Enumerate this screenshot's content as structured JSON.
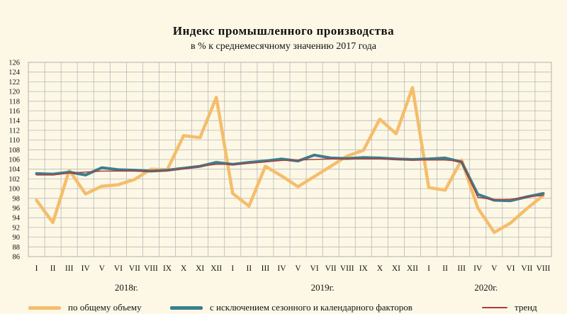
{
  "chart_data": {
    "type": "line",
    "title": "Индекс промышленного  производства",
    "subtitle": "в % к среднемесячному значению 2017  года",
    "y_ticks": [
      86,
      88,
      90,
      92,
      94,
      96,
      98,
      100,
      102,
      104,
      106,
      108,
      110,
      112,
      114,
      116,
      118,
      120,
      122,
      124,
      126
    ],
    "ylim": [
      86,
      126
    ],
    "grid": true,
    "month_labels": [
      "I",
      "II",
      "III",
      "IV",
      "V",
      "VI",
      "VII",
      "VIII",
      "IX",
      "X",
      "XI",
      "XII",
      "I",
      "II",
      "III",
      "IV",
      "V",
      "VI",
      "VII",
      "VIII",
      "IX",
      "X",
      "XI",
      "XII",
      "I",
      "II",
      "III",
      "IV",
      "V",
      "VI",
      "VII",
      "VIII"
    ],
    "year_labels": [
      {
        "label": "2018г.",
        "center_index": 5.5
      },
      {
        "label": "2019г.",
        "center_index": 17.5
      },
      {
        "label": "2020г.",
        "center_index": 27.5
      }
    ],
    "series": [
      {
        "name": "по общему объему",
        "color": "#f5bd6b",
        "values": [
          97.6,
          93.0,
          103.8,
          98.9,
          100.5,
          100.8,
          101.9,
          104.0,
          103.9,
          110.9,
          110.5,
          118.8,
          99.0,
          96.4,
          104.6,
          102.6,
          100.4,
          102.5,
          104.6,
          106.7,
          107.9,
          114.3,
          111.3,
          120.8,
          100.2,
          99.7,
          105.9,
          96.0,
          91.0,
          92.9,
          95.9,
          98.6
        ]
      },
      {
        "name": "с исключением сезонного и календарного факторов",
        "color": "#3b7f8c",
        "values": [
          103.1,
          103.0,
          103.4,
          102.8,
          104.3,
          103.9,
          103.8,
          103.6,
          103.8,
          104.2,
          104.6,
          105.4,
          105.0,
          105.4,
          105.7,
          106.1,
          105.7,
          106.9,
          106.3,
          106.2,
          106.4,
          106.3,
          106.1,
          106.0,
          106.1,
          106.3,
          105.5,
          98.8,
          97.6,
          97.5,
          98.3,
          99.0
        ]
      },
      {
        "name": "тренд",
        "color": "#b23a3a",
        "values": [
          102.8,
          102.8,
          103.2,
          103.4,
          103.6,
          103.6,
          103.6,
          103.6,
          103.7,
          104.1,
          104.6,
          105.0,
          105.0,
          105.2,
          105.5,
          105.8,
          105.9,
          106.0,
          106.1,
          106.1,
          106.1,
          106.1,
          106.0,
          105.9,
          105.9,
          105.9,
          105.6,
          98.2,
          97.7,
          97.8,
          98.3,
          98.6
        ]
      }
    ]
  }
}
